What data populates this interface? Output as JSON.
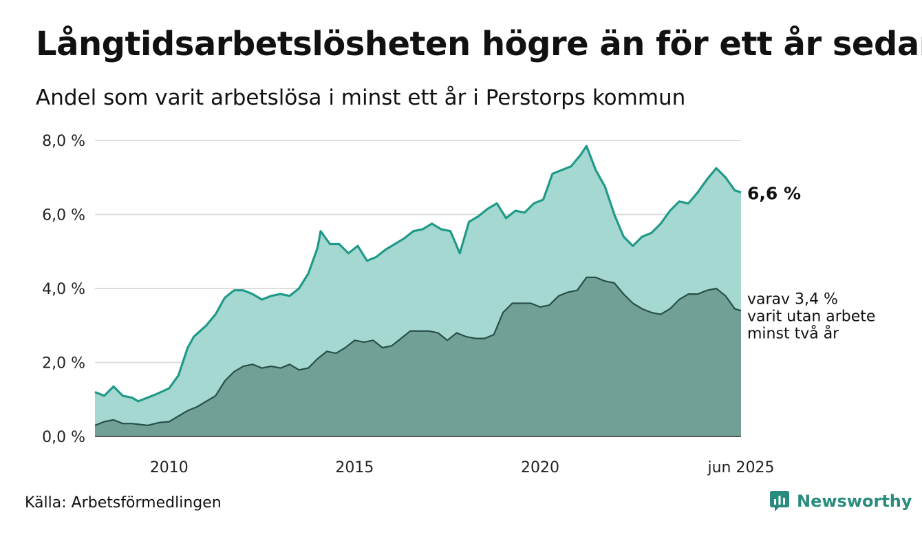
{
  "title": "Långtidsarbetslösheten högre än för ett år sedan",
  "subtitle": "Andel som varit arbetslösa i minst ett år i Perstorps kommun",
  "source": "Källa: Arbetsförmedlingen",
  "brand": {
    "name": "Newsworthy",
    "icon": "newsworthy-logo-icon"
  },
  "colors": {
    "outer_line": "#1f9a89",
    "outer_fill": "#a6d8d2",
    "inner_line": "#274f48",
    "inner_fill": "#71a096",
    "grid": "#dddddd",
    "brand": "#2a8c7e"
  },
  "chart_data": {
    "type": "area",
    "x_axis": {
      "type": "date",
      "min": "2008-01",
      "max": "2025-06",
      "tick_labels": [
        "2010",
        "2015",
        "2020",
        "jun 2025"
      ],
      "tick_positions": [
        "2010-01",
        "2015-01",
        "2020-01",
        "2025-06"
      ]
    },
    "y_axis": {
      "min": 0,
      "max": 8,
      "ticks": [
        0,
        2,
        4,
        6,
        8
      ],
      "tick_labels": [
        "0,0 %",
        "2,0 %",
        "4,0 %",
        "6,0 %",
        "8,0 %"
      ]
    },
    "grid": true,
    "labels": {
      "end_value_outer": "6,6 %",
      "end_value_inner_lines": [
        "varav 3,4 %",
        "varit utan arbete",
        "minst två år"
      ]
    },
    "series": [
      {
        "key": "minst_ett_ar",
        "points": [
          [
            "2008-01",
            1.2
          ],
          [
            "2008-04",
            1.1
          ],
          [
            "2008-07",
            1.35
          ],
          [
            "2008-10",
            1.1
          ],
          [
            "2009-01",
            1.05
          ],
          [
            "2009-03",
            0.95
          ],
          [
            "2009-06",
            1.05
          ],
          [
            "2009-09",
            1.15
          ],
          [
            "2010-01",
            1.3
          ],
          [
            "2010-04",
            1.65
          ],
          [
            "2010-07",
            2.4
          ],
          [
            "2010-09",
            2.7
          ],
          [
            "2011-01",
            3.0
          ],
          [
            "2011-04",
            3.3
          ],
          [
            "2011-07",
            3.75
          ],
          [
            "2011-10",
            3.95
          ],
          [
            "2012-01",
            3.95
          ],
          [
            "2012-04",
            3.85
          ],
          [
            "2012-07",
            3.7
          ],
          [
            "2012-10",
            3.8
          ],
          [
            "2013-01",
            3.85
          ],
          [
            "2013-04",
            3.8
          ],
          [
            "2013-07",
            4.0
          ],
          [
            "2013-10",
            4.4
          ],
          [
            "2014-01",
            5.1
          ],
          [
            "2014-02",
            5.55
          ],
          [
            "2014-05",
            5.2
          ],
          [
            "2014-08",
            5.2
          ],
          [
            "2014-11",
            4.95
          ],
          [
            "2015-02",
            5.15
          ],
          [
            "2015-05",
            4.75
          ],
          [
            "2015-08",
            4.85
          ],
          [
            "2015-11",
            5.05
          ],
          [
            "2016-02",
            5.2
          ],
          [
            "2016-05",
            5.35
          ],
          [
            "2016-08",
            5.55
          ],
          [
            "2016-11",
            5.6
          ],
          [
            "2017-02",
            5.75
          ],
          [
            "2017-05",
            5.6
          ],
          [
            "2017-08",
            5.55
          ],
          [
            "2017-11",
            4.95
          ],
          [
            "2018-02",
            5.8
          ],
          [
            "2018-05",
            5.95
          ],
          [
            "2018-08",
            6.15
          ],
          [
            "2018-11",
            6.3
          ],
          [
            "2019-02",
            5.9
          ],
          [
            "2019-05",
            6.1
          ],
          [
            "2019-08",
            6.05
          ],
          [
            "2019-11",
            6.3
          ],
          [
            "2020-02",
            6.4
          ],
          [
            "2020-05",
            7.1
          ],
          [
            "2020-08",
            7.2
          ],
          [
            "2020-11",
            7.3
          ],
          [
            "2021-02",
            7.6
          ],
          [
            "2021-04",
            7.85
          ],
          [
            "2021-07",
            7.2
          ],
          [
            "2021-10",
            6.75
          ],
          [
            "2022-01",
            6.0
          ],
          [
            "2022-04",
            5.4
          ],
          [
            "2022-07",
            5.15
          ],
          [
            "2022-10",
            5.4
          ],
          [
            "2023-01",
            5.5
          ],
          [
            "2023-04",
            5.75
          ],
          [
            "2023-07",
            6.1
          ],
          [
            "2023-10",
            6.35
          ],
          [
            "2024-01",
            6.3
          ],
          [
            "2024-04",
            6.6
          ],
          [
            "2024-07",
            6.95
          ],
          [
            "2024-10",
            7.25
          ],
          [
            "2025-01",
            7.0
          ],
          [
            "2025-04",
            6.65
          ],
          [
            "2025-06",
            6.6
          ]
        ]
      },
      {
        "key": "minst_tva_ar",
        "points": [
          [
            "2008-01",
            0.3
          ],
          [
            "2008-04",
            0.4
          ],
          [
            "2008-07",
            0.45
          ],
          [
            "2008-10",
            0.35
          ],
          [
            "2009-01",
            0.35
          ],
          [
            "2009-06",
            0.3
          ],
          [
            "2009-10",
            0.38
          ],
          [
            "2010-01",
            0.4
          ],
          [
            "2010-04",
            0.55
          ],
          [
            "2010-07",
            0.7
          ],
          [
            "2010-10",
            0.8
          ],
          [
            "2011-01",
            0.95
          ],
          [
            "2011-04",
            1.1
          ],
          [
            "2011-07",
            1.5
          ],
          [
            "2011-10",
            1.75
          ],
          [
            "2012-01",
            1.9
          ],
          [
            "2012-04",
            1.95
          ],
          [
            "2012-07",
            1.85
          ],
          [
            "2012-10",
            1.9
          ],
          [
            "2013-01",
            1.85
          ],
          [
            "2013-04",
            1.95
          ],
          [
            "2013-07",
            1.8
          ],
          [
            "2013-10",
            1.85
          ],
          [
            "2014-01",
            2.1
          ],
          [
            "2014-04",
            2.3
          ],
          [
            "2014-07",
            2.25
          ],
          [
            "2014-10",
            2.4
          ],
          [
            "2015-01",
            2.6
          ],
          [
            "2015-04",
            2.55
          ],
          [
            "2015-07",
            2.6
          ],
          [
            "2015-10",
            2.4
          ],
          [
            "2016-01",
            2.45
          ],
          [
            "2016-04",
            2.65
          ],
          [
            "2016-07",
            2.85
          ],
          [
            "2016-10",
            2.85
          ],
          [
            "2017-01",
            2.85
          ],
          [
            "2017-04",
            2.8
          ],
          [
            "2017-07",
            2.6
          ],
          [
            "2017-10",
            2.8
          ],
          [
            "2018-01",
            2.7
          ],
          [
            "2018-04",
            2.65
          ],
          [
            "2018-07",
            2.65
          ],
          [
            "2018-10",
            2.75
          ],
          [
            "2019-01",
            3.35
          ],
          [
            "2019-04",
            3.6
          ],
          [
            "2019-07",
            3.6
          ],
          [
            "2019-10",
            3.6
          ],
          [
            "2020-01",
            3.5
          ],
          [
            "2020-04",
            3.55
          ],
          [
            "2020-07",
            3.8
          ],
          [
            "2020-10",
            3.9
          ],
          [
            "2021-01",
            3.95
          ],
          [
            "2021-04",
            4.3
          ],
          [
            "2021-07",
            4.3
          ],
          [
            "2021-10",
            4.2
          ],
          [
            "2022-01",
            4.15
          ],
          [
            "2022-04",
            3.85
          ],
          [
            "2022-07",
            3.6
          ],
          [
            "2022-10",
            3.45
          ],
          [
            "2023-01",
            3.35
          ],
          [
            "2023-04",
            3.3
          ],
          [
            "2023-07",
            3.45
          ],
          [
            "2023-10",
            3.7
          ],
          [
            "2024-01",
            3.85
          ],
          [
            "2024-04",
            3.85
          ],
          [
            "2024-07",
            3.95
          ],
          [
            "2024-10",
            4.0
          ],
          [
            "2025-01",
            3.8
          ],
          [
            "2025-04",
            3.45
          ],
          [
            "2025-06",
            3.4
          ]
        ]
      }
    ]
  }
}
